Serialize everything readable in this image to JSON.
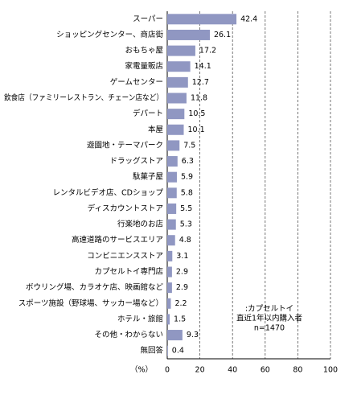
{
  "chart_data": {
    "type": "barh",
    "categories": [
      "スーパー",
      "ショッピングセンター、商店街",
      "おもちゃ屋",
      "家電量販店",
      "ゲームセンター",
      "飲食店（ファミリーレストラン、チェーン店など）",
      "デパート",
      "本屋",
      "遊園地・テーマパーク",
      "ドラッグストア",
      "駄菓子屋",
      "レンタルビデオ店、CDショップ",
      "ディスカウントストア",
      "行楽地のお店",
      "高速道路のサービスエリア",
      "コンビニエンスストア",
      "カプセルトイ専門店",
      "ボウリング場、カラオケ店、映画館など",
      "スポーツ施設（野球場、サッカー場など）",
      "ホテル・旅館",
      "その他・わからない",
      "無回答"
    ],
    "values": [
      42.4,
      26.1,
      17.2,
      14.1,
      12.7,
      11.8,
      10.5,
      10.1,
      7.5,
      6.3,
      5.9,
      5.8,
      5.5,
      5.3,
      4.8,
      3.1,
      2.9,
      2.9,
      2.2,
      1.5,
      9.3,
      0.4
    ],
    "color": "#9097c2",
    "x_label": "（%）",
    "xlim": [
      0,
      100
    ],
    "xticks": [
      0,
      20,
      40,
      60,
      80,
      100
    ],
    "grid": true,
    "annotation": [
      ":カプセルトイ",
      "直近1年以内購入者",
      "n=1470"
    ]
  }
}
